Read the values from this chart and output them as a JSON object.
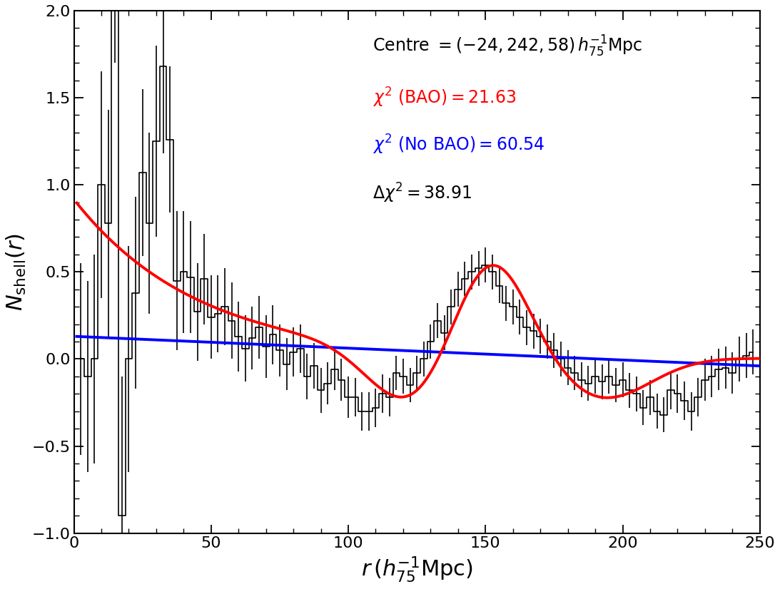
{
  "xlabel": "$r\\,(h_{75}^{-1}\\mathrm{Mpc})$",
  "ylabel": "$N_{\\mathrm{shell}}(r)$",
  "xlim": [
    0,
    250
  ],
  "ylim": [
    -1.0,
    2.0
  ],
  "yticks": [
    -1.0,
    -0.5,
    0.0,
    0.5,
    1.0,
    1.5,
    2.0
  ],
  "xticks": [
    0,
    50,
    100,
    150,
    200,
    250
  ],
  "color_bao_line": "#ff0000",
  "color_nobao_line": "#0000ff",
  "color_data": "#000000",
  "background_color": "#ffffff",
  "data_x": [
    2.5,
    5,
    7.5,
    10,
    12.5,
    15,
    17.5,
    20,
    22.5,
    25,
    27.5,
    30,
    32.5,
    35,
    37.5,
    40,
    42.5,
    45,
    47.5,
    50,
    52.5,
    55,
    57.5,
    60,
    62.5,
    65,
    67.5,
    70,
    72.5,
    75,
    77.5,
    80,
    82.5,
    85,
    87.5,
    90,
    92.5,
    95,
    97.5,
    100,
    102.5,
    105,
    107.5,
    110,
    112.5,
    115,
    117.5,
    120,
    122.5,
    125,
    127.5,
    130,
    132.5,
    135,
    137.5,
    140,
    142.5,
    145,
    147.5,
    150,
    152.5,
    155,
    157.5,
    160,
    162.5,
    165,
    167.5,
    170,
    172.5,
    175,
    177.5,
    180,
    182.5,
    185,
    187.5,
    190,
    192.5,
    195,
    197.5,
    200,
    202.5,
    205,
    207.5,
    210,
    212.5,
    215,
    217.5,
    220,
    222.5,
    225,
    227.5,
    230,
    232.5,
    235,
    237.5,
    240,
    242.5,
    245,
    247.5
  ],
  "data_y": [
    0.0,
    -0.1,
    0.0,
    1.0,
    0.78,
    2.0,
    -0.9,
    0.0,
    0.38,
    1.07,
    0.78,
    1.25,
    1.68,
    1.26,
    0.45,
    0.5,
    0.47,
    0.27,
    0.46,
    0.24,
    0.26,
    0.3,
    0.22,
    0.13,
    0.06,
    0.12,
    0.18,
    0.07,
    0.14,
    0.05,
    -0.03,
    0.04,
    0.06,
    -0.1,
    -0.04,
    -0.18,
    -0.14,
    -0.06,
    -0.12,
    -0.22,
    -0.22,
    -0.3,
    -0.3,
    -0.28,
    -0.2,
    -0.22,
    -0.08,
    -0.1,
    -0.15,
    -0.08,
    0.0,
    0.1,
    0.22,
    0.15,
    0.3,
    0.4,
    0.46,
    0.5,
    0.52,
    0.54,
    0.5,
    0.42,
    0.32,
    0.3,
    0.24,
    0.18,
    0.16,
    0.13,
    0.1,
    0.05,
    0.0,
    -0.05,
    -0.08,
    -0.12,
    -0.14,
    -0.1,
    -0.13,
    -0.1,
    -0.15,
    -0.12,
    -0.18,
    -0.2,
    -0.28,
    -0.22,
    -0.3,
    -0.32,
    -0.18,
    -0.2,
    -0.24,
    -0.3,
    -0.22,
    -0.12,
    -0.1,
    -0.06,
    -0.05,
    -0.08,
    0.0,
    0.02,
    0.04
  ],
  "data_yerr": [
    0.55,
    0.55,
    0.6,
    0.65,
    0.65,
    0.3,
    0.8,
    0.65,
    0.55,
    0.48,
    0.52,
    0.55,
    0.5,
    0.42,
    0.4,
    0.35,
    0.32,
    0.28,
    0.26,
    0.24,
    0.22,
    0.22,
    0.22,
    0.2,
    0.19,
    0.18,
    0.18,
    0.18,
    0.17,
    0.15,
    0.15,
    0.14,
    0.14,
    0.13,
    0.13,
    0.13,
    0.12,
    0.12,
    0.12,
    0.12,
    0.11,
    0.11,
    0.11,
    0.11,
    0.11,
    0.11,
    0.1,
    0.1,
    0.1,
    0.1,
    0.1,
    0.1,
    0.1,
    0.1,
    0.1,
    0.1,
    0.1,
    0.1,
    0.1,
    0.1,
    0.1,
    0.1,
    0.1,
    0.1,
    0.1,
    0.1,
    0.1,
    0.1,
    0.1,
    0.1,
    0.1,
    0.1,
    0.1,
    0.1,
    0.1,
    0.1,
    0.1,
    0.1,
    0.1,
    0.1,
    0.1,
    0.1,
    0.1,
    0.1,
    0.1,
    0.1,
    0.11,
    0.11,
    0.11,
    0.11,
    0.11,
    0.12,
    0.12,
    0.12,
    0.12,
    0.12,
    0.13,
    0.13,
    0.13
  ],
  "ann_pos_x": 0.435,
  "ann_pos_y_centre": 0.955,
  "ann_pos_y_bao": 0.855,
  "ann_pos_y_nobao": 0.765,
  "ann_pos_y_delta": 0.672,
  "ann_fontsize": 17
}
